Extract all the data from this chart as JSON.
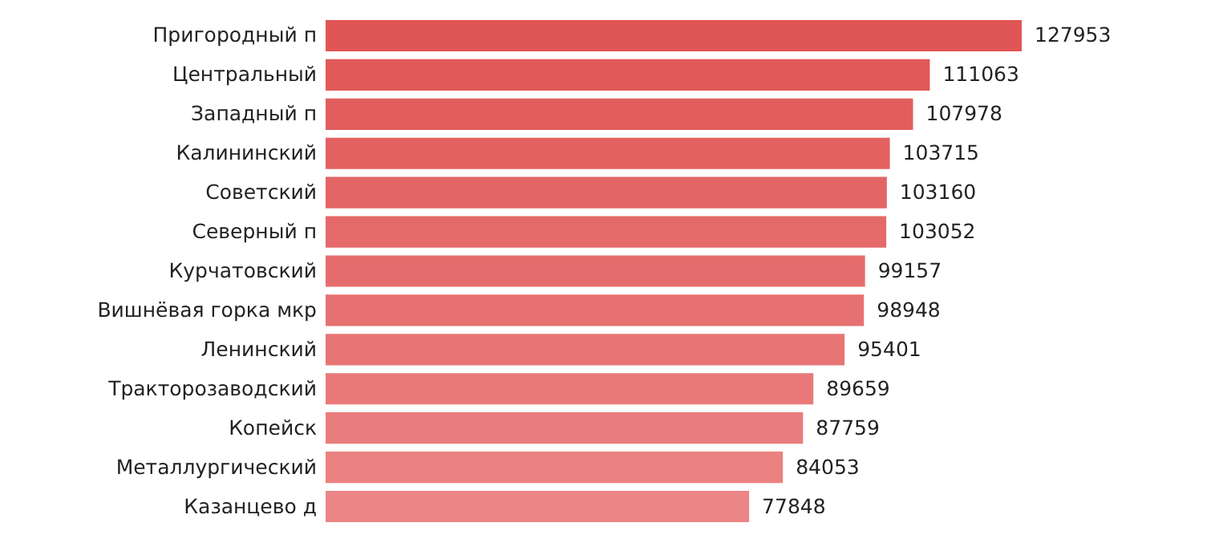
{
  "chart_data": {
    "type": "bar",
    "orientation": "horizontal",
    "data_labels": true,
    "categories": [
      "Пригородный п",
      "Центральный",
      "Западный п",
      "Калининский",
      "Советский",
      "Северный п",
      "Курчатовский",
      "Вишнёвая горка мкр",
      "Ленинский",
      "Тракторозаводский",
      "Копейск",
      "Металлургический",
      "Казанцево д"
    ],
    "values": [
      127953,
      111063,
      107978,
      103715,
      103160,
      103052,
      99157,
      98948,
      95401,
      89659,
      87759,
      84053,
      77848
    ],
    "colors": [
      "#e05555",
      "#e15959",
      "#e25d5d",
      "#e36161",
      "#e46565",
      "#e56969",
      "#e66d6d",
      "#e77171",
      "#e87575",
      "#e97979",
      "#ea7d7d",
      "#eb8181",
      "#ec8585"
    ]
  }
}
